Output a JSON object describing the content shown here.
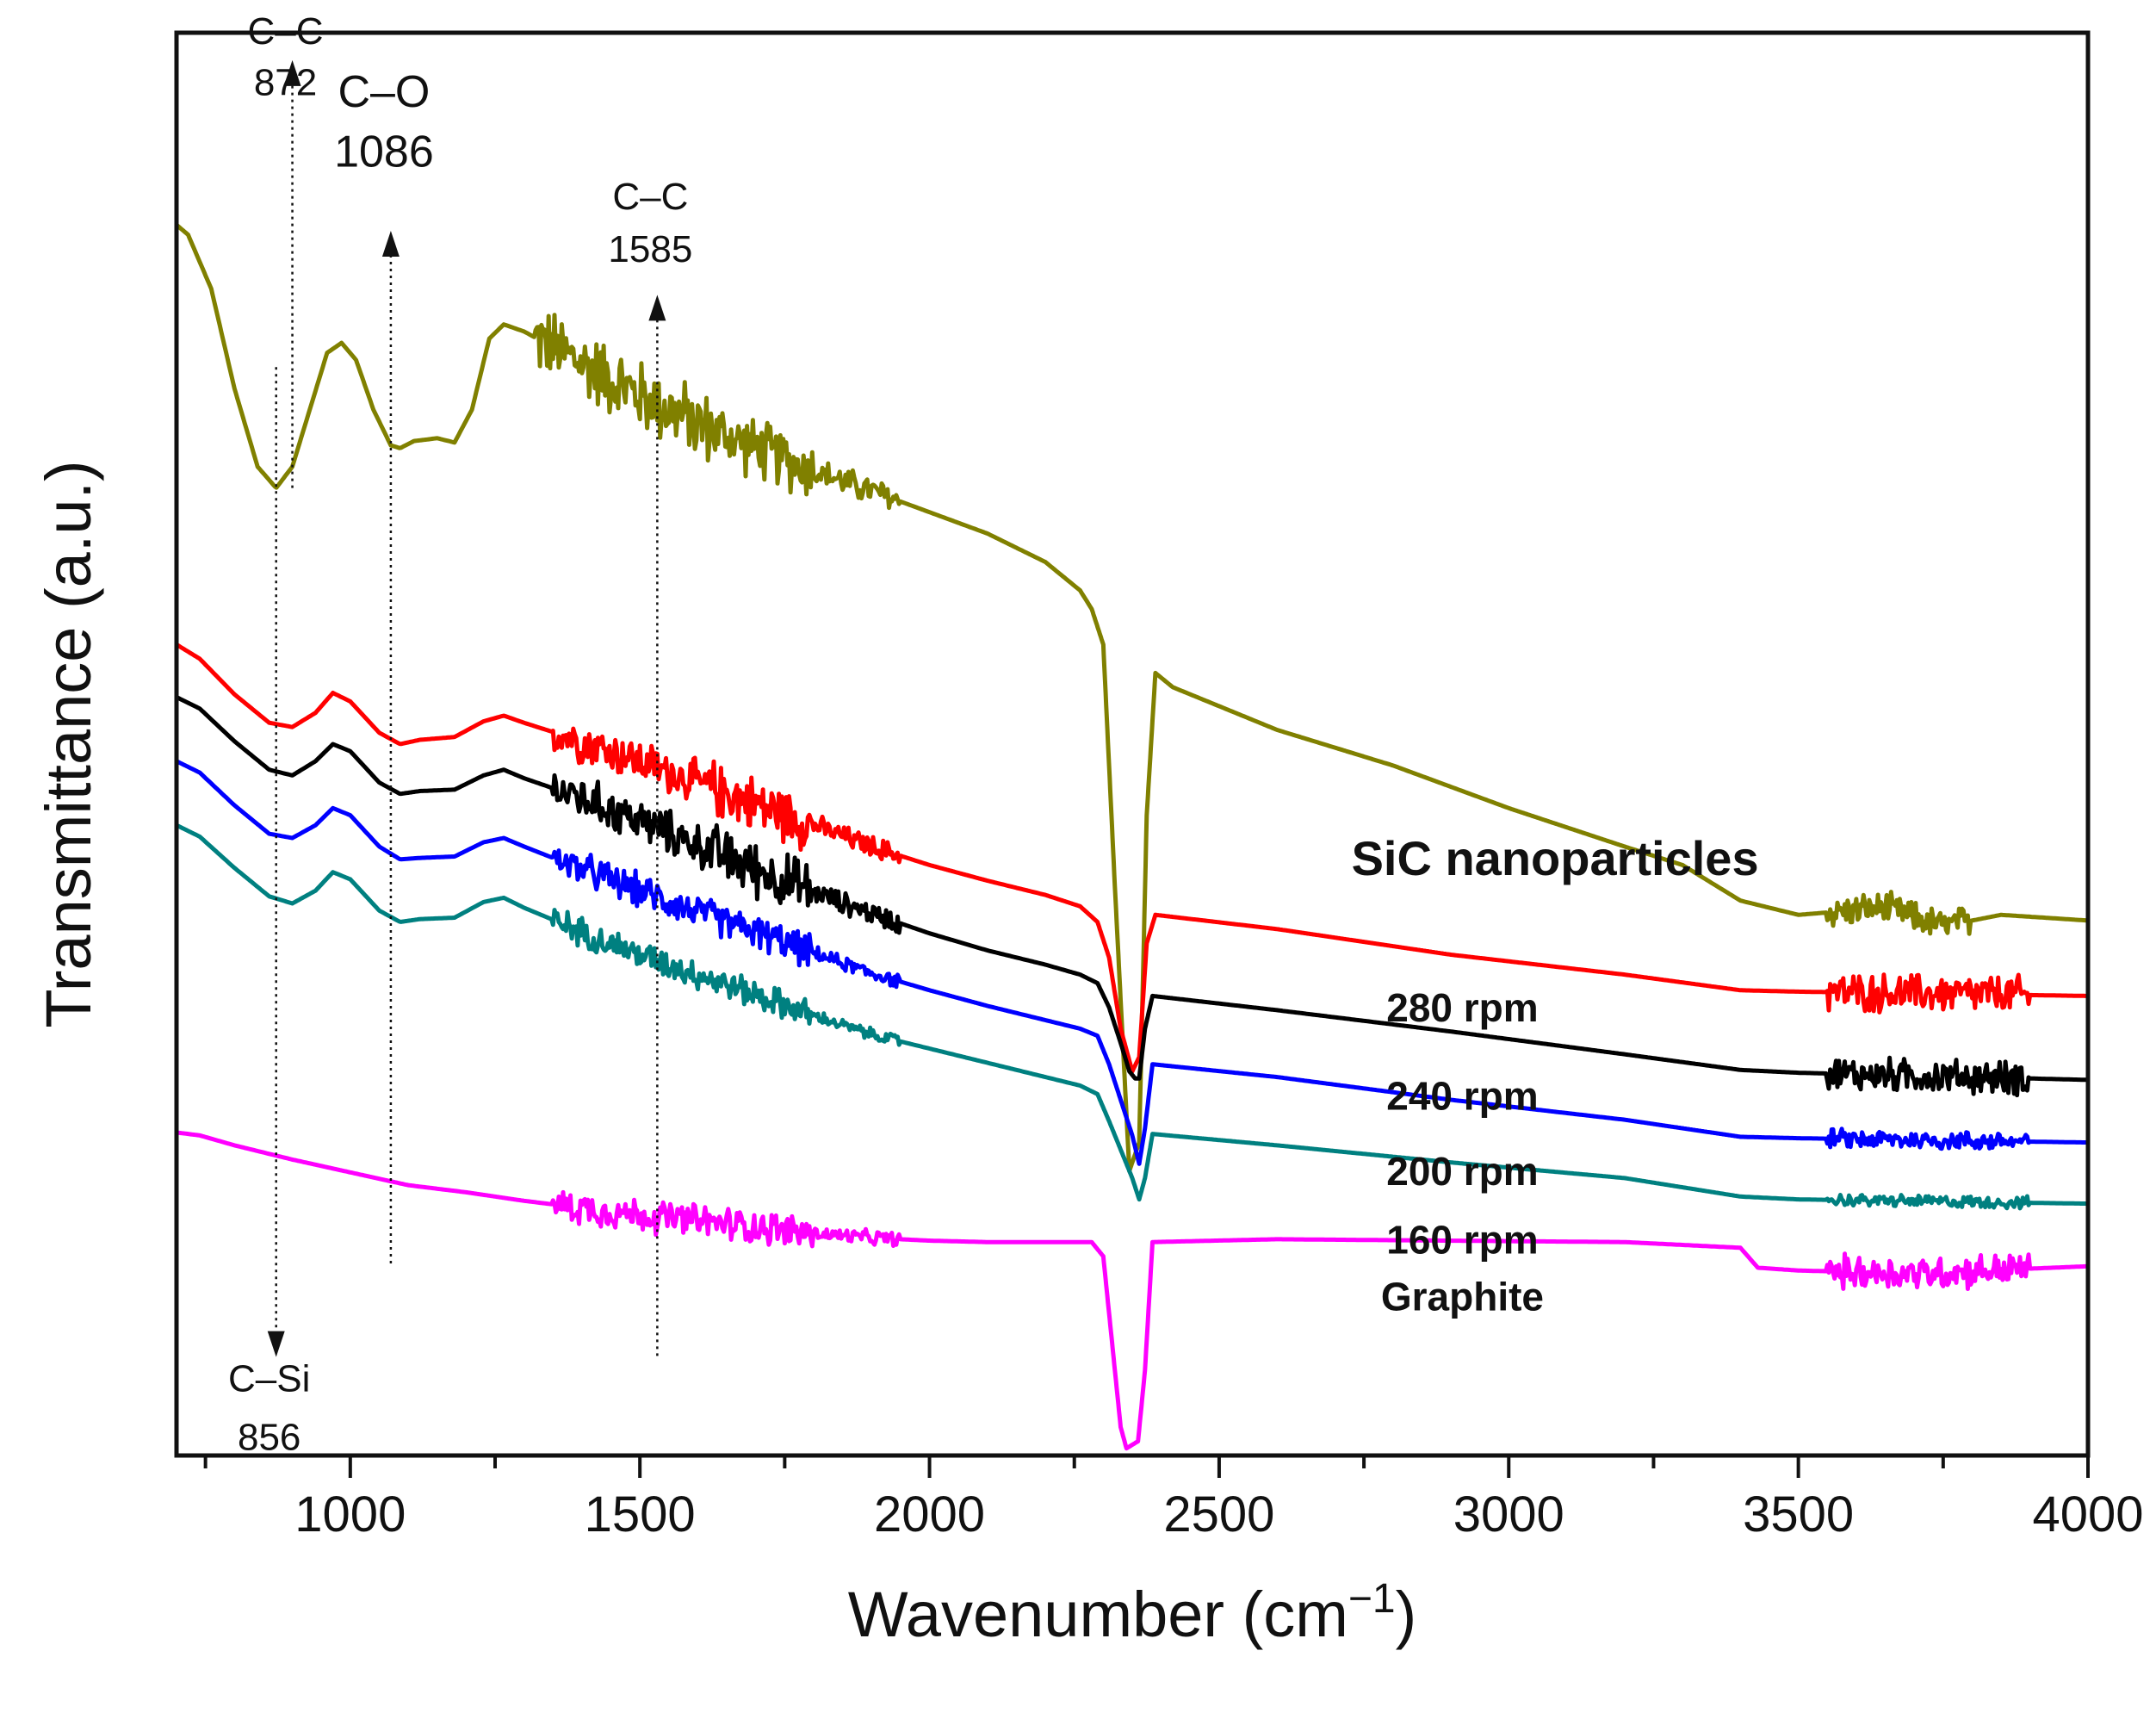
{
  "chart_data": {
    "type": "line",
    "xlabel": "Wavenumber (cm",
    "xlabel_sup": "−1",
    "xlabel_close": ")",
    "ylabel": "Transmittance (a.u.)",
    "xlim": [
      700,
      4000
    ],
    "ylim": [
      0,
      100
    ],
    "y_ticks_shown": false,
    "grid": false,
    "x_ticks": [
      1000,
      1500,
      2000,
      2500,
      3000,
      3500,
      4000
    ],
    "x_minor_step": 250,
    "series": [
      {
        "name": "SiC nanoparticles",
        "color": "#808000",
        "noise": [
          [
            1320,
            1620,
            3.0
          ],
          [
            1620,
            1800,
            2.5
          ],
          [
            1800,
            1950,
            1.2
          ],
          [
            3550,
            3800,
            1.3
          ]
        ],
        "points": [
          [
            700,
            86.5
          ],
          [
            720,
            85.8
          ],
          [
            760,
            82
          ],
          [
            800,
            75
          ],
          [
            840,
            69.5
          ],
          [
            872,
            68
          ],
          [
            900,
            69.5
          ],
          [
            930,
            73.5
          ],
          [
            960,
            77.5
          ],
          [
            985,
            78.2
          ],
          [
            1010,
            77
          ],
          [
            1040,
            73.5
          ],
          [
            1070,
            71
          ],
          [
            1086,
            70.8
          ],
          [
            1110,
            71.3
          ],
          [
            1150,
            71.5
          ],
          [
            1180,
            71.2
          ],
          [
            1210,
            73.5
          ],
          [
            1240,
            78.5
          ],
          [
            1265,
            79.5
          ],
          [
            1300,
            79
          ],
          [
            1400,
            76.8
          ],
          [
            1500,
            74.5
          ],
          [
            1600,
            72.5
          ],
          [
            1700,
            70.8
          ],
          [
            1800,
            69.2
          ],
          [
            1900,
            67.8
          ],
          [
            2000,
            66.3
          ],
          [
            2100,
            64.8
          ],
          [
            2200,
            62.8
          ],
          [
            2260,
            60.8
          ],
          [
            2280,
            59.5
          ],
          [
            2300,
            57
          ],
          [
            2320,
            40
          ],
          [
            2345,
            20
          ],
          [
            2362,
            22
          ],
          [
            2375,
            45
          ],
          [
            2390,
            55
          ],
          [
            2420,
            54
          ],
          [
            2600,
            51
          ],
          [
            2800,
            48.5
          ],
          [
            2900,
            47
          ],
          [
            3000,
            45.5
          ],
          [
            3200,
            42.8
          ],
          [
            3300,
            41.5
          ],
          [
            3400,
            39
          ],
          [
            3500,
            38
          ],
          [
            3650,
            38.5
          ],
          [
            3750,
            37.2
          ],
          [
            3850,
            38
          ],
          [
            4000,
            37.6
          ]
        ]
      },
      {
        "name": "280 rpm",
        "color": "#ff0000",
        "noise": [
          [
            1350,
            1620,
            1.8
          ],
          [
            1620,
            1800,
            2.3
          ],
          [
            1800,
            1950,
            0.9
          ],
          [
            3550,
            3900,
            1.6
          ]
        ],
        "points": [
          [
            700,
            57
          ],
          [
            740,
            56
          ],
          [
            800,
            53.5
          ],
          [
            860,
            51.5
          ],
          [
            900,
            51.2
          ],
          [
            940,
            52.2
          ],
          [
            970,
            53.6
          ],
          [
            1000,
            53
          ],
          [
            1050,
            50.8
          ],
          [
            1086,
            50
          ],
          [
            1120,
            50.3
          ],
          [
            1180,
            50.5
          ],
          [
            1230,
            51.6
          ],
          [
            1265,
            52
          ],
          [
            1300,
            51.5
          ],
          [
            1400,
            50.2
          ],
          [
            1500,
            48.8
          ],
          [
            1600,
            47.3
          ],
          [
            1700,
            45.8
          ],
          [
            1800,
            44.3
          ],
          [
            1900,
            42.8
          ],
          [
            2000,
            41.5
          ],
          [
            2100,
            40.4
          ],
          [
            2200,
            39.4
          ],
          [
            2260,
            38.6
          ],
          [
            2290,
            37.5
          ],
          [
            2310,
            35
          ],
          [
            2330,
            30
          ],
          [
            2350,
            27
          ],
          [
            2362,
            28
          ],
          [
            2375,
            36
          ],
          [
            2390,
            38
          ],
          [
            2600,
            37
          ],
          [
            2900,
            35.2
          ],
          [
            3200,
            33.8
          ],
          [
            3400,
            32.7
          ],
          [
            3500,
            32.6
          ],
          [
            4000,
            32.3
          ]
        ]
      },
      {
        "name": "240 rpm",
        "color": "#000000",
        "noise": [
          [
            1350,
            1620,
            1.8
          ],
          [
            1620,
            1800,
            2.3
          ],
          [
            1800,
            1950,
            0.9
          ],
          [
            3550,
            3900,
            1.4
          ]
        ],
        "points": [
          [
            700,
            53.3
          ],
          [
            740,
            52.5
          ],
          [
            800,
            50.2
          ],
          [
            860,
            48.2
          ],
          [
            900,
            47.8
          ],
          [
            940,
            48.8
          ],
          [
            970,
            50
          ],
          [
            1000,
            49.5
          ],
          [
            1050,
            47.3
          ],
          [
            1086,
            46.5
          ],
          [
            1120,
            46.7
          ],
          [
            1180,
            46.8
          ],
          [
            1230,
            47.8
          ],
          [
            1265,
            48.2
          ],
          [
            1300,
            47.6
          ],
          [
            1400,
            46.2
          ],
          [
            1500,
            44.6
          ],
          [
            1600,
            42.9
          ],
          [
            1700,
            41.2
          ],
          [
            1800,
            39.6
          ],
          [
            1900,
            38.1
          ],
          [
            2000,
            36.7
          ],
          [
            2100,
            35.5
          ],
          [
            2200,
            34.5
          ],
          [
            2260,
            33.8
          ],
          [
            2290,
            33.2
          ],
          [
            2310,
            31.5
          ],
          [
            2330,
            29
          ],
          [
            2345,
            27
          ],
          [
            2355,
            26.5
          ],
          [
            2362,
            26.5
          ],
          [
            2372,
            30
          ],
          [
            2385,
            32.3
          ],
          [
            2600,
            31.3
          ],
          [
            2900,
            29.8
          ],
          [
            3200,
            28.2
          ],
          [
            3400,
            27.1
          ],
          [
            3500,
            26.9
          ],
          [
            4000,
            26.4
          ]
        ]
      },
      {
        "name": "200 rpm",
        "color": "#0000ff",
        "noise": [
          [
            1350,
            1620,
            1.4
          ],
          [
            1620,
            1800,
            1.4
          ],
          [
            1800,
            1950,
            0.6
          ],
          [
            3550,
            3900,
            0.8
          ]
        ],
        "points": [
          [
            700,
            48.8
          ],
          [
            740,
            48
          ],
          [
            800,
            45.7
          ],
          [
            860,
            43.7
          ],
          [
            900,
            43.4
          ],
          [
            940,
            44.3
          ],
          [
            970,
            45.5
          ],
          [
            1000,
            45
          ],
          [
            1050,
            42.8
          ],
          [
            1086,
            41.9
          ],
          [
            1120,
            42
          ],
          [
            1180,
            42.1
          ],
          [
            1230,
            43.1
          ],
          [
            1265,
            43.4
          ],
          [
            1300,
            42.8
          ],
          [
            1400,
            41.2
          ],
          [
            1500,
            39.7
          ],
          [
            1600,
            38.2
          ],
          [
            1700,
            36.8
          ],
          [
            1800,
            35.3
          ],
          [
            1900,
            33.9
          ],
          [
            2000,
            32.7
          ],
          [
            2100,
            31.6
          ],
          [
            2200,
            30.6
          ],
          [
            2260,
            30
          ],
          [
            2290,
            29.5
          ],
          [
            2310,
            27.5
          ],
          [
            2330,
            25
          ],
          [
            2350,
            22.5
          ],
          [
            2362,
            20.5
          ],
          [
            2372,
            23
          ],
          [
            2385,
            27.5
          ],
          [
            2600,
            26.6
          ],
          [
            2900,
            25
          ],
          [
            3200,
            23.6
          ],
          [
            3400,
            22.4
          ],
          [
            3500,
            22.3
          ],
          [
            4000,
            22
          ]
        ]
      },
      {
        "name": "160 rpm",
        "color": "#008080",
        "noise": [
          [
            1350,
            1620,
            1.2
          ],
          [
            1620,
            1800,
            1.2
          ],
          [
            1800,
            1950,
            0.5
          ],
          [
            3550,
            3900,
            0.5
          ]
        ],
        "points": [
          [
            700,
            44.3
          ],
          [
            740,
            43.5
          ],
          [
            800,
            41.3
          ],
          [
            860,
            39.3
          ],
          [
            900,
            38.8
          ],
          [
            940,
            39.7
          ],
          [
            970,
            41
          ],
          [
            1000,
            40.5
          ],
          [
            1050,
            38.3
          ],
          [
            1086,
            37.5
          ],
          [
            1120,
            37.7
          ],
          [
            1180,
            37.8
          ],
          [
            1230,
            38.9
          ],
          [
            1265,
            39.2
          ],
          [
            1300,
            38.5
          ],
          [
            1400,
            36.8
          ],
          [
            1500,
            35.2
          ],
          [
            1600,
            33.8
          ],
          [
            1700,
            32.4
          ],
          [
            1800,
            30.9
          ],
          [
            1900,
            29.6
          ],
          [
            2000,
            28.6
          ],
          [
            2100,
            27.6
          ],
          [
            2200,
            26.6
          ],
          [
            2260,
            26
          ],
          [
            2290,
            25.4
          ],
          [
            2310,
            23.5
          ],
          [
            2330,
            21.5
          ],
          [
            2350,
            19.5
          ],
          [
            2362,
            18
          ],
          [
            2372,
            19.5
          ],
          [
            2385,
            22.6
          ],
          [
            2600,
            21.8
          ],
          [
            2900,
            20.6
          ],
          [
            3200,
            19.5
          ],
          [
            3400,
            18.2
          ],
          [
            3500,
            18
          ],
          [
            4000,
            17.7
          ]
        ]
      },
      {
        "name": "Graphite",
        "color": "#ff00ff",
        "noise": [
          [
            1350,
            1800,
            1.4
          ],
          [
            1800,
            1950,
            0.6
          ],
          [
            3550,
            3900,
            1.4
          ]
        ],
        "points": [
          [
            700,
            22.7
          ],
          [
            740,
            22.5
          ],
          [
            800,
            21.8
          ],
          [
            900,
            20.8
          ],
          [
            1000,
            19.9
          ],
          [
            1100,
            19
          ],
          [
            1200,
            18.5
          ],
          [
            1300,
            17.9
          ],
          [
            1400,
            17.4
          ],
          [
            1500,
            16.9
          ],
          [
            1600,
            16.5
          ],
          [
            1700,
            16.1
          ],
          [
            1800,
            15.6
          ],
          [
            1900,
            15.3
          ],
          [
            2000,
            15.1
          ],
          [
            2100,
            15
          ],
          [
            2200,
            15
          ],
          [
            2280,
            15
          ],
          [
            2300,
            14
          ],
          [
            2315,
            8
          ],
          [
            2330,
            2
          ],
          [
            2340,
            0.5
          ],
          [
            2360,
            1
          ],
          [
            2372,
            6
          ],
          [
            2385,
            15
          ],
          [
            2600,
            15.2
          ],
          [
            2900,
            15.1
          ],
          [
            3200,
            15
          ],
          [
            3400,
            14.6
          ],
          [
            3430,
            13.2
          ],
          [
            3500,
            13
          ],
          [
            3700,
            12.8
          ],
          [
            4000,
            13.3
          ]
        ]
      }
    ],
    "series_labels": [
      {
        "text": "SiC nanoparticles",
        "x": 3080,
        "y": 40.8
      },
      {
        "text": "280 rpm",
        "x": 2920,
        "y": 30.5
      },
      {
        "text": "240 rpm",
        "x": 2920,
        "y": 24.3
      },
      {
        "text": "200 rpm",
        "x": 2920,
        "y": 19.0
      },
      {
        "text": "160 rpm",
        "x": 2920,
        "y": 14.2
      },
      {
        "text": "Graphite",
        "x": 2920,
        "y": 10.2
      }
    ],
    "annotations": [
      {
        "line1": "C–C",
        "line2": "872",
        "x": 900,
        "direction": "up",
        "y_from": 68,
        "y_to": 96.5,
        "label_y": [
          99.2,
          95.6
        ]
      },
      {
        "line1": "C–O",
        "line2": "1086",
        "x": 1070,
        "direction": "up",
        "y_from": 13.5,
        "y_to": 84.5,
        "label_y": [
          94.8,
          90.6
        ]
      },
      {
        "line1": "C–C",
        "line2": "1585",
        "x": 1530,
        "direction": "up",
        "y_from": 7,
        "y_to": 80,
        "label_y": [
          87.6,
          83.9
        ]
      },
      {
        "line1": "C–Si",
        "line2": "856",
        "x": 872,
        "direction": "down",
        "y_from": 76.5,
        "y_to": 8.5,
        "label_y": [
          4.5,
          0.4
        ]
      }
    ]
  }
}
